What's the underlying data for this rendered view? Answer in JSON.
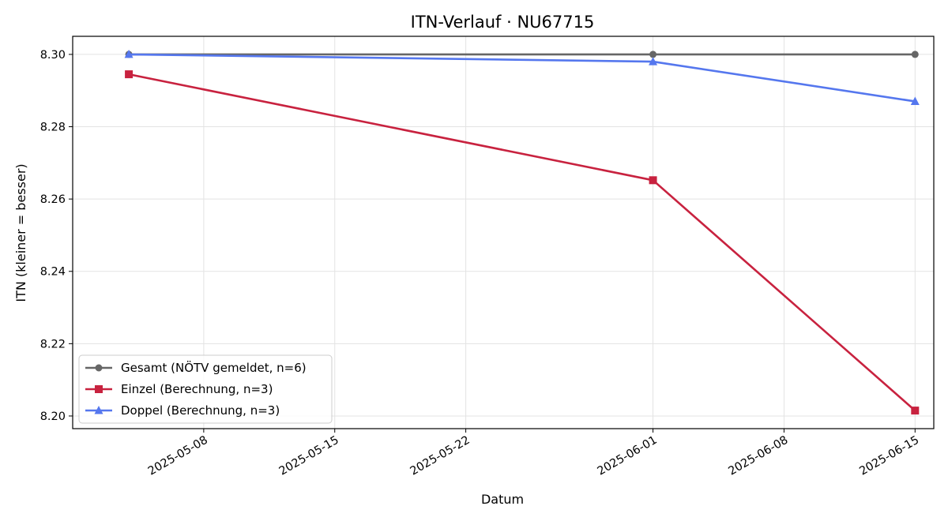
{
  "chart_data": {
    "type": "line",
    "title": "ITN-Verlauf · NU67715",
    "xlabel": "Datum",
    "ylabel": "ITN  (kleiner = besser)",
    "x_axis": {
      "type": "date",
      "range": [
        "2025-05-01",
        "2025-06-16"
      ],
      "ticks": [
        "2025-05-08",
        "2025-05-15",
        "2025-05-22",
        "2025-06-01",
        "2025-06-08",
        "2025-06-15"
      ]
    },
    "y_axis": {
      "range": [
        8.1965,
        8.305
      ],
      "ticks": [
        "8.20",
        "8.22",
        "8.24",
        "8.26",
        "8.28",
        "8.30"
      ]
    },
    "grid": true,
    "legend_position": "bottom-left",
    "series": [
      {
        "name": "Gesamt (NÖTV gemeldet, n=6)",
        "color": "#666666",
        "marker": "circle",
        "points": [
          {
            "x": "2025-05-04",
            "y": 8.3
          },
          {
            "x": "2025-06-01",
            "y": 8.3
          },
          {
            "x": "2025-06-15",
            "y": 8.3
          }
        ]
      },
      {
        "name": "Einzel (Berechnung, n=3)",
        "color": "#c8223f",
        "marker": "square",
        "points": [
          {
            "x": "2025-05-04",
            "y": 8.2945
          },
          {
            "x": "2025-06-01",
            "y": 8.2652
          },
          {
            "x": "2025-06-15",
            "y": 8.2015
          }
        ]
      },
      {
        "name": "Doppel (Berechnung, n=3)",
        "color": "#5577ee",
        "marker": "triangle",
        "points": [
          {
            "x": "2025-05-04",
            "y": 8.3
          },
          {
            "x": "2025-06-01",
            "y": 8.298
          },
          {
            "x": "2025-06-15",
            "y": 8.287
          }
        ]
      }
    ]
  }
}
